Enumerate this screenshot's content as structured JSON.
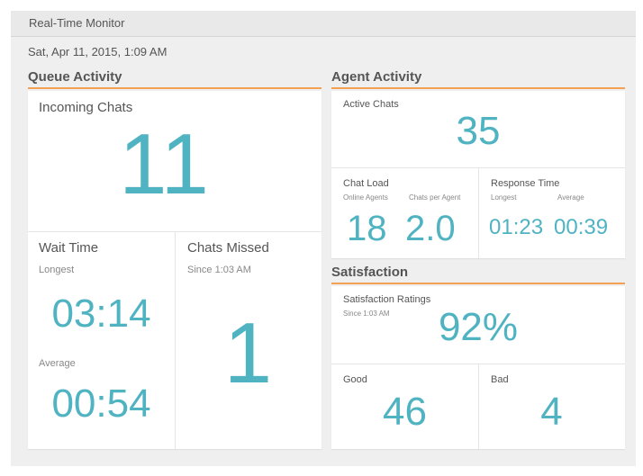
{
  "app": {
    "title": "Real-Time Monitor",
    "datetime": "Sat, Apr 11, 2015, 1:09 AM"
  },
  "queue": {
    "title": "Queue Activity",
    "incoming": {
      "label": "Incoming Chats",
      "value": "11"
    },
    "wait": {
      "label": "Wait Time",
      "longest_label": "Longest",
      "longest": "03:14",
      "average_label": "Average",
      "average": "00:54"
    },
    "missed": {
      "label": "Chats Missed",
      "since": "Since 1:03 AM",
      "value": "1"
    }
  },
  "agent": {
    "title": "Agent Activity",
    "active": {
      "label": "Active Chats",
      "value": "35"
    },
    "load": {
      "label": "Chat Load",
      "online_label": "Online Agents",
      "online": "18",
      "per_label": "Chats per Agent",
      "per": "2.0"
    },
    "response": {
      "label": "Response Time",
      "longest_label": "Longest",
      "longest": "01:23",
      "average_label": "Average",
      "average": "00:39"
    }
  },
  "satisfaction": {
    "title": "Satisfaction",
    "ratings": {
      "label": "Satisfaction Ratings",
      "since": "Since 1:03 AM",
      "value": "92%"
    },
    "good": {
      "label": "Good",
      "value": "46"
    },
    "bad": {
      "label": "Bad",
      "value": "4"
    }
  }
}
